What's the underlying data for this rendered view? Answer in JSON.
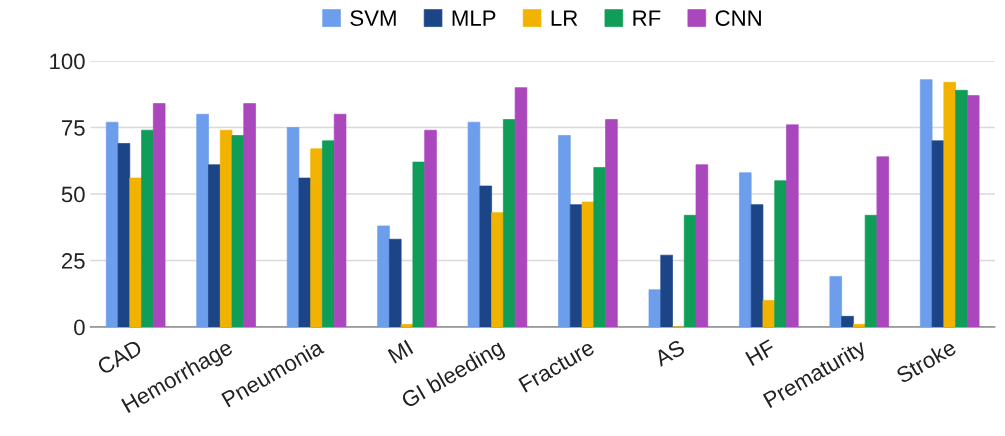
{
  "chart_data": {
    "type": "bar",
    "categories": [
      "CAD",
      "Hemorrhage",
      "Pneumonia",
      "MI",
      "GI bleeding",
      "Fracture",
      "AS",
      "HF",
      "Prematurity",
      "Stroke"
    ],
    "series": [
      {
        "name": "SVM",
        "color": "#6d9eeb",
        "values": [
          77,
          80,
          75,
          38,
          77,
          72,
          14,
          58,
          19,
          93
        ]
      },
      {
        "name": "MLP",
        "color": "#1c4587",
        "values": [
          69,
          61,
          56,
          33,
          53,
          46,
          27,
          46,
          4,
          70
        ]
      },
      {
        "name": "LR",
        "color": "#f1b300",
        "values": [
          56,
          74,
          67,
          1,
          43,
          47,
          0,
          10,
          1,
          92
        ]
      },
      {
        "name": "RF",
        "color": "#0f9d58",
        "values": [
          74,
          72,
          70,
          62,
          78,
          60,
          42,
          55,
          42,
          89
        ]
      },
      {
        "name": "CNN",
        "color": "#ab47bc",
        "values": [
          84,
          84,
          80,
          74,
          90,
          78,
          61,
          76,
          64,
          87
        ]
      }
    ],
    "ylim": [
      0,
      100
    ],
    "yticks": [
      0,
      25,
      50,
      75,
      100
    ],
    "grid": "y",
    "legend": "top"
  }
}
